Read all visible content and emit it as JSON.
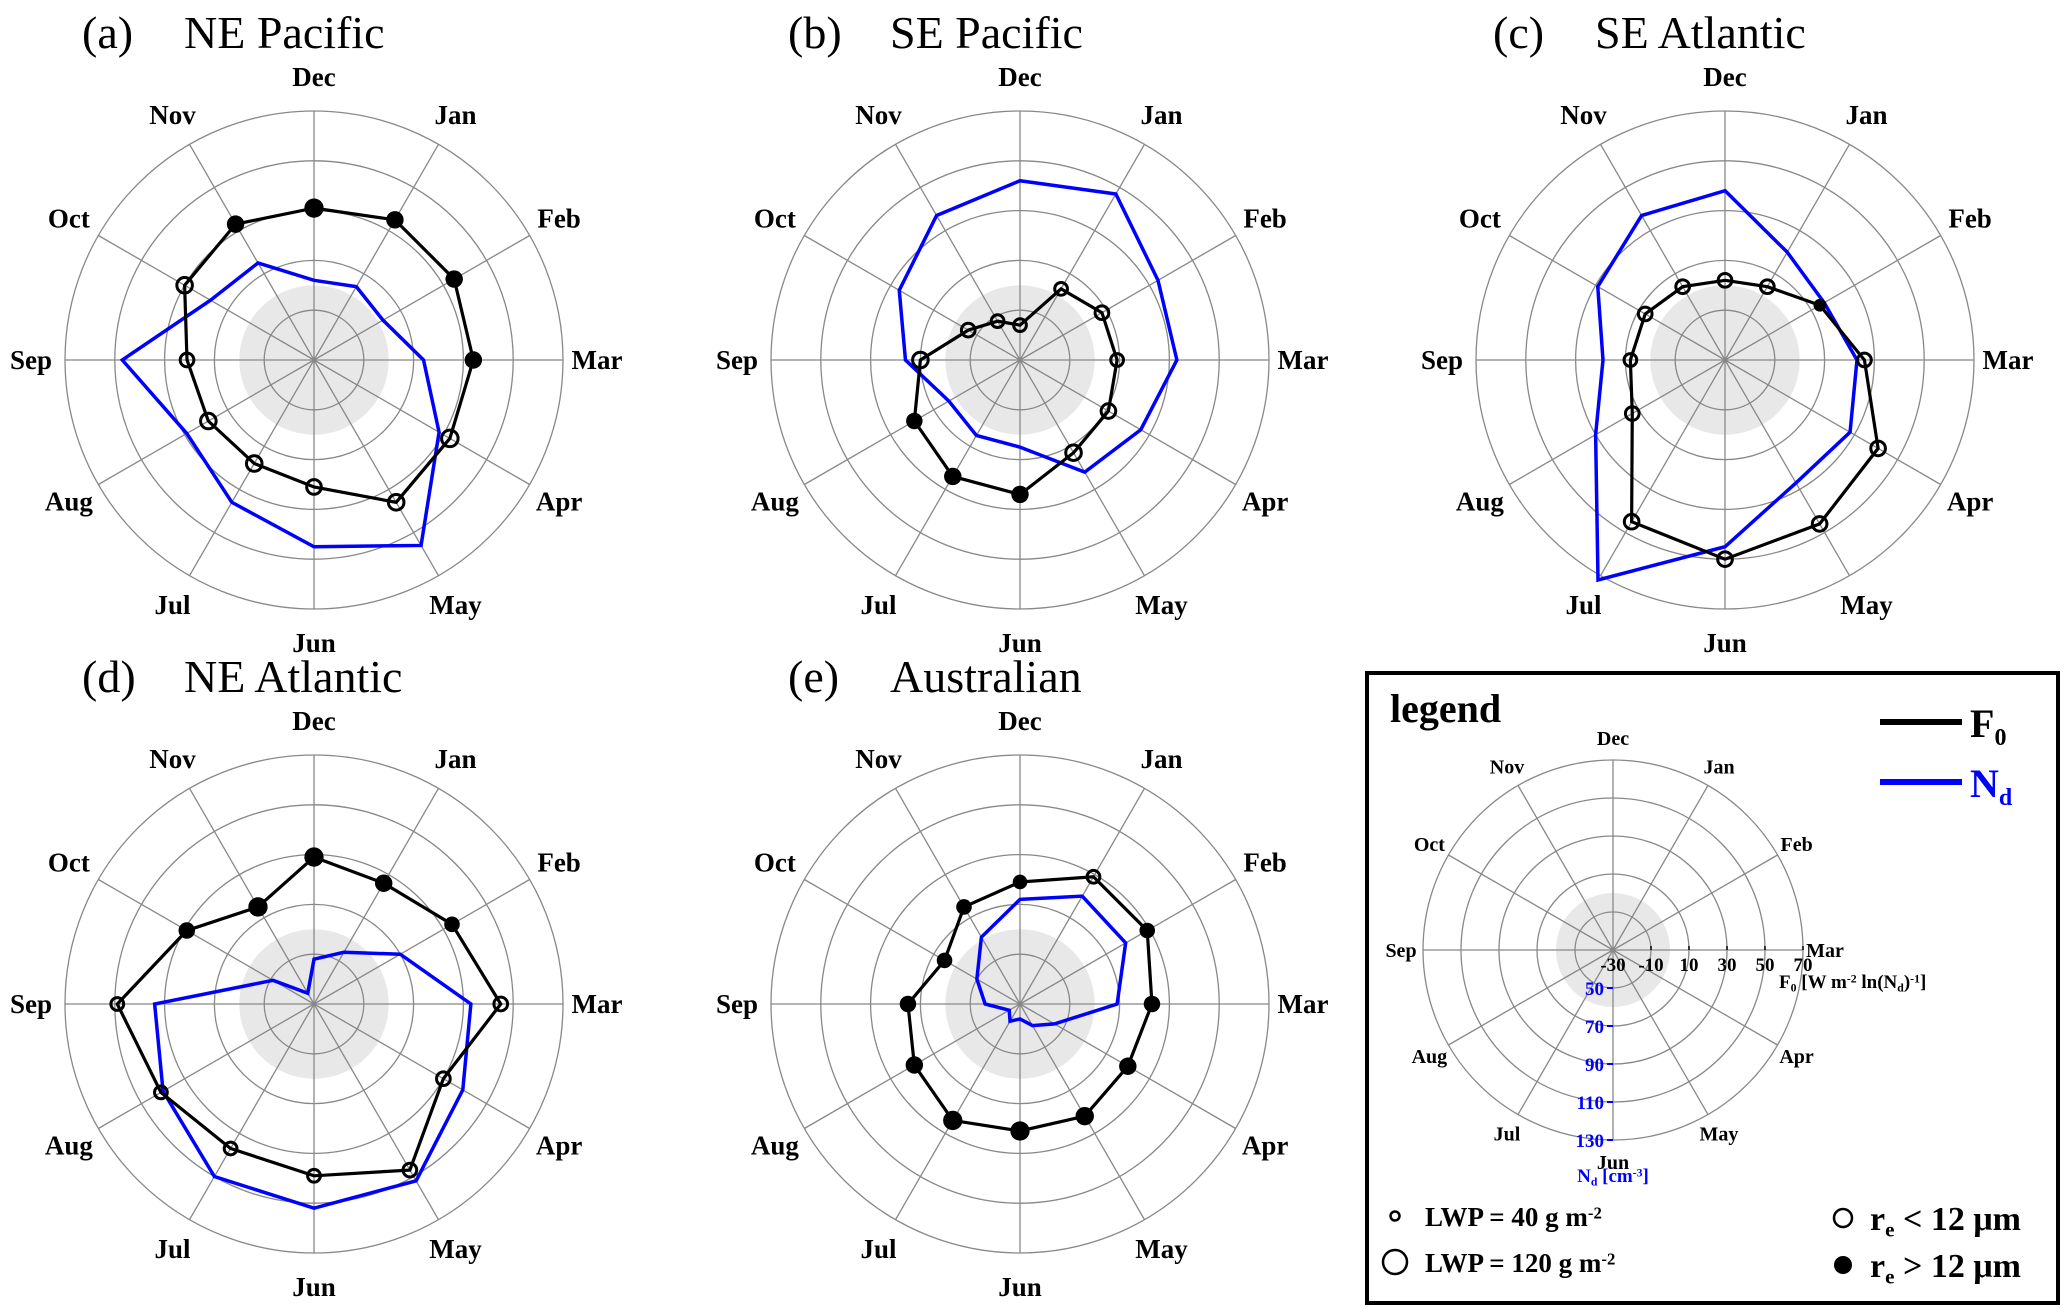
{
  "colors": {
    "f0": "#000000",
    "nd": "#0000ff",
    "grid": "#888888",
    "shade": "#e8e8e8"
  },
  "chart_data": {
    "type": "radar",
    "months": [
      "Dec",
      "Jan",
      "Feb",
      "Mar",
      "Apr",
      "May",
      "Jun",
      "Jul",
      "Aug",
      "Sep",
      "Oct",
      "Nov"
    ],
    "f0_axis": {
      "ticks": [
        -30,
        -10,
        10,
        30,
        50,
        70
      ],
      "range": [
        -30,
        70
      ],
      "shaded_below": 0
    },
    "nd_axis": {
      "ticks": [
        50,
        70,
        90,
        110,
        130
      ],
      "range": [
        30,
        130
      ]
    },
    "panels": [
      {
        "label": "(a)",
        "title": "NE Pacific",
        "f0": [
          31,
          35,
          35,
          34,
          33,
          36,
          21,
          18,
          19,
          21,
          30,
          33
        ],
        "nd": [
          62,
          64,
          62,
          74,
          88,
          116,
          105,
          96,
          89,
          107,
          78,
          75
        ],
        "re_gt_12": [
          true,
          true,
          true,
          true,
          false,
          false,
          false,
          false,
          false,
          false,
          false,
          true
        ],
        "lwp": [
          95,
          85,
          85,
          85,
          80,
          75,
          70,
          75,
          75,
          65,
          75,
          85
        ]
      },
      {
        "label": "(b)",
        "title": "SE Pacific",
        "f0": [
          -16,
          3,
          8,
          9,
          11,
          13,
          24,
          24,
          19,
          10,
          -6,
          -12
        ],
        "nd": [
          102,
          107,
          94,
          93,
          86,
          82,
          65,
          65,
          63,
          76,
          86,
          97
        ],
        "re_gt_12": [
          false,
          false,
          false,
          false,
          false,
          false,
          true,
          true,
          true,
          false,
          false,
          false
        ],
        "lwp": [
          60,
          60,
          65,
          60,
          70,
          75,
          85,
          85,
          80,
          75,
          65,
          60
        ]
      },
      {
        "label": "(c)",
        "title": "SE Atlantic",
        "f0": [
          2,
          4,
          14,
          26,
          41,
          46,
          50,
          45,
          13,
          8,
          7,
          4
        ],
        "nd": [
          98,
          80,
          76,
          83,
          88,
          87,
          105,
          132,
          90,
          79,
          89,
          97
        ],
        "re_gt_12": [
          false,
          false,
          true,
          false,
          false,
          false,
          false,
          false,
          false,
          false,
          false,
          false
        ],
        "lwp": [
          65,
          65,
          60,
          65,
          70,
          70,
          70,
          70,
          65,
          60,
          65,
          65
        ]
      },
      {
        "label": "(d)",
        "title": "NE Atlantic",
        "f0": [
          29,
          26,
          34,
          45,
          30,
          47,
          39,
          37,
          41,
          49,
          29,
          15
        ],
        "nd": [
          48,
          54,
          70,
          93,
          99,
          112,
          112,
          110,
          100,
          94,
          49,
          35
        ],
        "re_gt_12": [
          true,
          true,
          true,
          false,
          false,
          false,
          false,
          false,
          false,
          false,
          true,
          true
        ],
        "lwp": [
          95,
          85,
          75,
          65,
          65,
          65,
          60,
          60,
          60,
          60,
          80,
          95
        ]
      },
      {
        "label": "(e)",
        "title": "Australian",
        "f0": [
          19,
          29,
          29,
          23,
          20,
          22,
          21,
          24,
          19,
          15,
          5,
          15
        ],
        "nd": [
          72,
          80,
          79,
          69,
          46,
          40,
          36,
          38,
          35,
          44,
          50,
          61
        ],
        "re_gt_12": [
          true,
          false,
          true,
          true,
          true,
          true,
          true,
          true,
          true,
          true,
          true,
          true
        ],
        "lwp": [
          70,
          60,
          75,
          80,
          85,
          90,
          95,
          95,
          85,
          80,
          75,
          75
        ]
      }
    ]
  },
  "legend": {
    "heading": "legend",
    "f0_line": {
      "main": "F",
      "sub": "0"
    },
    "nd_line": {
      "main": "N",
      "sub": "d"
    },
    "f0_ticks": [
      "-30",
      "-10",
      "10",
      "30",
      "50",
      "70"
    ],
    "nd_ticks": [
      "50",
      "70",
      "90",
      "110",
      "130"
    ],
    "f0_axis_label": [
      {
        "t": "F"
      },
      {
        "t": "0",
        "sub": true
      },
      {
        "t": " [W m"
      },
      {
        "t": "-2",
        "sup": true
      },
      {
        "t": " ln(N"
      },
      {
        "t": "d",
        "sub": true
      },
      {
        "t": ")"
      },
      {
        "t": "-1",
        "sup": true
      },
      {
        "t": "]"
      }
    ],
    "nd_axis_label": [
      {
        "t": "N"
      },
      {
        "t": "d",
        "sub": true
      },
      {
        "t": " [cm"
      },
      {
        "t": "-3",
        "sup": true
      },
      {
        "t": "]"
      }
    ],
    "lwp_small": [
      {
        "t": "LWP = 40 g m"
      },
      {
        "t": "-2",
        "sup": true
      }
    ],
    "lwp_large": [
      {
        "t": "LWP = 120 g m"
      },
      {
        "t": "-2",
        "sup": true
      }
    ],
    "re_small": [
      {
        "t": "r"
      },
      {
        "t": "e",
        "sub": true
      },
      {
        "t": " < 12 μm"
      }
    ],
    "re_large": [
      {
        "t": "r"
      },
      {
        "t": "e",
        "sub": true
      },
      {
        "t": " > 12 μm"
      }
    ],
    "lwp_values": [
      40,
      120
    ]
  }
}
